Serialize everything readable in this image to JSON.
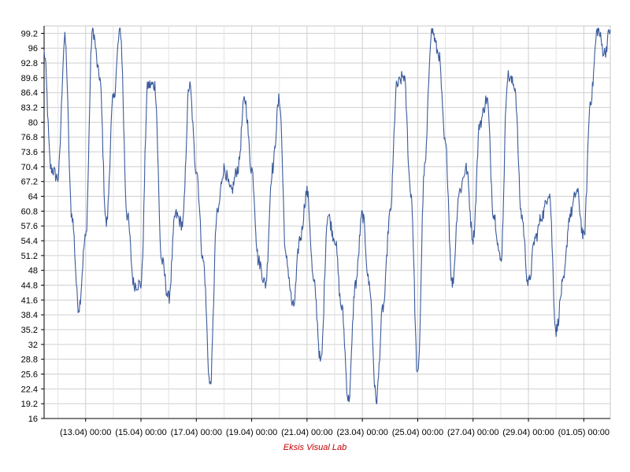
{
  "chart_data": {
    "type": "line",
    "credit": "Eksis Visual Lab",
    "y_ticks": [
      "16",
      "19.2",
      "22.4",
      "25.6",
      "28.8",
      "32",
      "35.2",
      "38.4",
      "41.6",
      "44.8",
      "48",
      "51.2",
      "54.4",
      "57.6",
      "60.8",
      "64",
      "67.2",
      "70.4",
      "73.6",
      "76.8",
      "80",
      "83.2",
      "86.4",
      "89.6",
      "92.8",
      "96",
      "99.2"
    ],
    "x_ticks": [
      "(13.04) 00:00",
      "(15.04) 00:00",
      "(17.04) 00:00",
      "(19.04) 00:00",
      "(21.04) 00:00",
      "(23.04) 00:00",
      "(25.04) 00:00",
      "(27.04) 00:00",
      "(29.04) 00:00",
      "(01.05) 00:00"
    ],
    "ylim": [
      16,
      100.8
    ],
    "xlim": [
      "2000-04-11 12:00",
      "2000-05-01 23:00"
    ],
    "grid": true,
    "series_color": "#3a5a9c",
    "series": [
      {
        "x": [
          "04-11 12:00",
          "04-11 18:00",
          "04-12 00:00",
          "04-12 06:00",
          "04-12 12:00",
          "04-12 18:00",
          "04-13 00:00",
          "04-13 06:00",
          "04-13 12:00",
          "04-13 18:00",
          "04-14 00:00",
          "04-14 06:00",
          "04-14 12:00",
          "04-14 18:00",
          "04-15 00:00",
          "04-15 06:00",
          "04-15 12:00",
          "04-15 18:00",
          "04-16 00:00",
          "04-16 06:00",
          "04-16 12:00",
          "04-16 18:00",
          "04-17 00:00",
          "04-17 06:00",
          "04-17 12:00",
          "04-17 18:00",
          "04-18 00:00",
          "04-18 06:00",
          "04-18 12:00",
          "04-18 18:00",
          "04-19 00:00",
          "04-19 06:00",
          "04-19 12:00",
          "04-19 18:00",
          "04-20 00:00",
          "04-20 06:00",
          "04-20 12:00",
          "04-20 18:00",
          "04-21 00:00",
          "04-21 06:00",
          "04-21 12:00",
          "04-21 18:00",
          "04-22 00:00",
          "04-22 06:00",
          "04-22 12:00",
          "04-22 18:00",
          "04-23 00:00",
          "04-23 06:00",
          "04-23 12:00",
          "04-23 18:00",
          "04-24 00:00",
          "04-24 06:00",
          "04-24 12:00",
          "04-24 18:00",
          "04-25 00:00",
          "04-25 06:00",
          "04-25 12:00",
          "04-25 18:00",
          "04-26 00:00",
          "04-26 06:00",
          "04-26 12:00",
          "04-26 18:00",
          "04-27 00:00",
          "04-27 06:00",
          "04-27 12:00",
          "04-27 18:00",
          "04-28 00:00",
          "04-28 06:00",
          "04-28 12:00",
          "04-28 18:00",
          "04-29 00:00",
          "04-29 06:00",
          "04-29 12:00",
          "04-29 18:00",
          "04-30 00:00",
          "04-30 06:00",
          "04-30 12:00",
          "04-30 18:00",
          "05-01 00:00",
          "05-01 06:00",
          "05-01 12:00",
          "05-01 18:00",
          "05-01 23:00"
        ],
        "y": [
          95,
          70,
          68,
          98,
          60,
          40,
          55,
          100,
          90,
          58,
          85,
          100,
          60,
          45,
          45,
          88,
          88,
          50,
          42,
          60,
          58,
          88,
          70,
          50,
          23,
          60,
          70,
          65,
          70,
          85,
          70,
          50,
          45,
          70,
          85,
          50,
          40,
          55,
          65,
          45,
          28,
          60,
          55,
          40,
          20,
          45,
          60,
          45,
          20,
          40,
          60,
          88,
          90,
          65,
          25,
          70,
          100,
          95,
          75,
          45,
          65,
          70,
          55,
          80,
          85,
          60,
          50,
          90,
          88,
          60,
          45,
          55,
          60,
          65,
          35,
          45,
          60,
          65,
          55,
          85,
          100,
          95,
          100
        ]
      }
    ]
  }
}
